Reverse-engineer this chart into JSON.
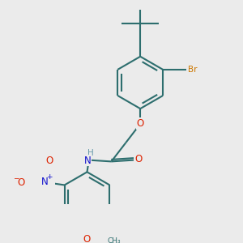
{
  "bg_color": "#ebebeb",
  "bond_color": "#2d6e6e",
  "bond_lw": 1.5,
  "atom_colors": {
    "O": "#dd2200",
    "N": "#1111cc",
    "Br": "#cc7700",
    "H": "#6699aa",
    "C": "#2d6e6e"
  },
  "fs": 8.5,
  "fs_small": 7.5,
  "fs_tiny": 6.5
}
